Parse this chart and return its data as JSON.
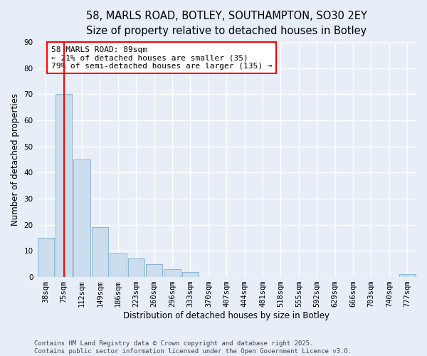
{
  "title_line1": "58, MARLS ROAD, BOTLEY, SOUTHAMPTON, SO30 2EY",
  "title_line2": "Size of property relative to detached houses in Botley",
  "xlabel": "Distribution of detached houses by size in Botley",
  "ylabel": "Number of detached properties",
  "bar_values": [
    15,
    70,
    45,
    19,
    9,
    7,
    5,
    3,
    2,
    0,
    0,
    0,
    0,
    0,
    0,
    0,
    0,
    0,
    0,
    0,
    1
  ],
  "categories": [
    "38sqm",
    "75sqm",
    "112sqm",
    "149sqm",
    "186sqm",
    "223sqm",
    "260sqm",
    "296sqm",
    "333sqm",
    "370sqm",
    "407sqm",
    "444sqm",
    "481sqm",
    "518sqm",
    "555sqm",
    "592sqm",
    "629sqm",
    "666sqm",
    "703sqm",
    "740sqm",
    "777sqm"
  ],
  "bar_color": "#ccdded",
  "bar_edge_color": "#7aaecb",
  "vline_x": 1,
  "vline_color": "red",
  "annotation_text": "58 MARLS ROAD: 89sqm\n← 21% of detached houses are smaller (35)\n79% of semi-detached houses are larger (135) →",
  "annotation_box_color": "white",
  "annotation_edge_color": "red",
  "ylim": [
    0,
    90
  ],
  "yticks": [
    0,
    10,
    20,
    30,
    40,
    50,
    60,
    70,
    80,
    90
  ],
  "bg_color": "#e8eef8",
  "plot_bg_color": "#e8eef8",
  "grid_color": "white",
  "footer_text": "Contains HM Land Registry data © Crown copyright and database right 2025.\nContains public sector information licensed under the Open Government Licence v3.0.",
  "title_fontsize": 10.5,
  "subtitle_fontsize": 9.5,
  "axis_label_fontsize": 8.5,
  "tick_fontsize": 7.5,
  "annotation_fontsize": 8,
  "footer_fontsize": 6.5
}
